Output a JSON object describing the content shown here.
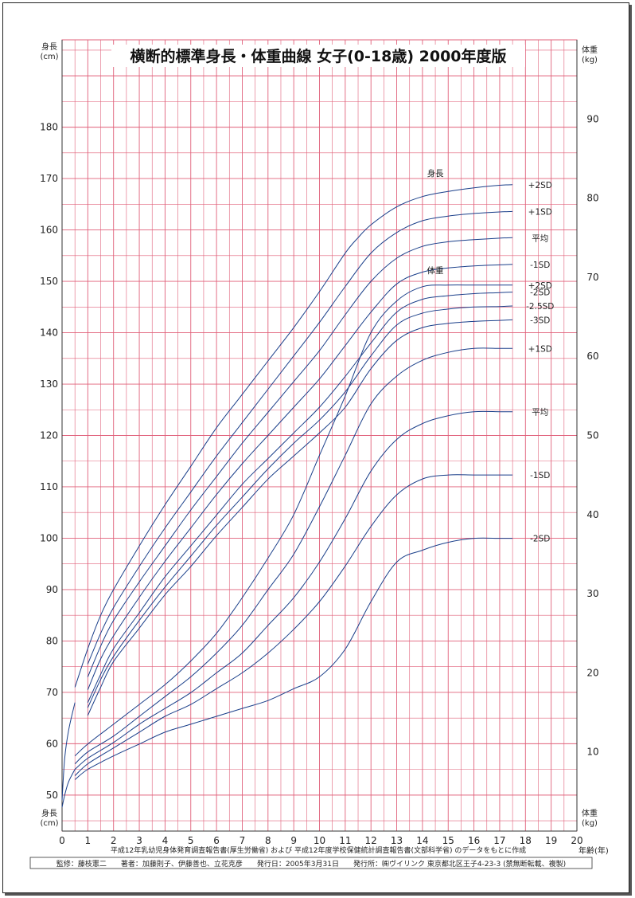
{
  "chart_data": {
    "type": "line",
    "title": "横断的標準身長・体重曲線 女子(0-18歳) 2000年度版",
    "xlabel": "年齢(年)",
    "x_ticks": [
      0,
      1,
      2,
      3,
      4,
      5,
      6,
      7,
      8,
      9,
      10,
      11,
      12,
      13,
      14,
      15,
      16,
      17,
      18,
      19,
      20
    ],
    "xlim": [
      0,
      20
    ],
    "y_left": {
      "label_top": "身長\n(cm)",
      "label_bottom": "身長\n(cm)",
      "ylim": [
        43,
        197
      ],
      "ticks": [
        50,
        60,
        70,
        80,
        90,
        100,
        110,
        120,
        130,
        140,
        150,
        160,
        170,
        180
      ]
    },
    "y_right": {
      "label_top": "体重\n(kg)",
      "label_bottom": "体重\n(kg)",
      "ylim": [
        0,
        100
      ],
      "ticks": [
        10,
        20,
        30,
        40,
        50,
        60,
        70,
        80,
        90
      ]
    },
    "grid": true,
    "height_group_label": "身長",
    "weight_group_label": "体重",
    "height_series": [
      {
        "name": "+2SD",
        "x": [
          0.5,
          1,
          1.5,
          2,
          3,
          4,
          5,
          6,
          7,
          8,
          9,
          10,
          11,
          11.5,
          12,
          13,
          14,
          15,
          16,
          17,
          17.5
        ],
        "values": [
          71,
          78.5,
          85,
          90,
          98.5,
          106.5,
          114,
          121.5,
          128,
          134.5,
          141,
          148,
          155.5,
          158.5,
          161,
          164.5,
          166.5,
          167.5,
          168.2,
          168.7,
          168.8
        ]
      },
      {
        "name": "+1SD",
        "x": [
          1,
          1.5,
          2,
          3,
          4,
          5,
          6,
          7,
          8,
          9,
          10,
          11,
          12,
          13,
          14,
          15,
          16,
          17,
          17.5
        ],
        "values": [
          75.5,
          81.5,
          86.5,
          94.5,
          102,
          109,
          116,
          122.5,
          129,
          135.5,
          142,
          149,
          155.5,
          159.5,
          161.8,
          162.7,
          163.2,
          163.5,
          163.6
        ]
      },
      {
        "name": "平均",
        "x": [
          1,
          1.5,
          2,
          3,
          4,
          5,
          6,
          7,
          8,
          9,
          10,
          11,
          12,
          13,
          14,
          15,
          16,
          17,
          17.5
        ],
        "values": [
          73,
          79,
          84,
          91.5,
          98.5,
          105.5,
          112,
          118.5,
          124.5,
          130.5,
          136.5,
          143.5,
          150,
          154.5,
          156.8,
          157.7,
          158.1,
          158.4,
          158.5
        ]
      },
      {
        "name": "-1SD",
        "x": [
          1,
          1.5,
          2,
          3,
          4,
          5,
          6,
          7,
          8,
          9,
          10,
          11,
          12,
          13,
          14,
          15,
          16,
          17,
          17.5
        ],
        "values": [
          70.5,
          76.5,
          81,
          88.5,
          95.5,
          102,
          108.5,
          114.5,
          120,
          125.5,
          131,
          137.5,
          144,
          149.5,
          151.8,
          152.6,
          153,
          153.2,
          153.3
        ]
      },
      {
        "name": "-2SD",
        "x": [
          1,
          1.5,
          2,
          3,
          4,
          5,
          6,
          7,
          8,
          9,
          10,
          11,
          12,
          13,
          14,
          15,
          16,
          17,
          17.5
        ],
        "values": [
          68,
          73.5,
          78.5,
          85.5,
          92.5,
          98.5,
          104.5,
          110.5,
          115.5,
          120.5,
          125.5,
          131.5,
          138,
          144,
          146.5,
          147.2,
          147.6,
          147.8,
          147.9
        ]
      },
      {
        "name": "-2.5SD",
        "x": [
          1,
          1.5,
          2,
          3,
          4,
          5,
          6,
          7,
          8,
          9,
          10,
          11,
          12,
          13,
          14,
          15,
          16,
          17,
          17.5
        ],
        "values": [
          67,
          72.5,
          77,
          84,
          90.5,
          96.5,
          102.5,
          108,
          113.5,
          118.5,
          123,
          128.5,
          135.5,
          141.5,
          143.8,
          144.6,
          145,
          145.1,
          145.2
        ]
      },
      {
        "name": "-3SD",
        "x": [
          1,
          1.5,
          2,
          3,
          4,
          5,
          6,
          7,
          8,
          9,
          10,
          11,
          12,
          13,
          14,
          15,
          16,
          17,
          17.5
        ],
        "values": [
          65.5,
          71,
          76,
          82.5,
          89,
          94.5,
          100.5,
          106,
          111.5,
          116,
          120.5,
          125.5,
          133,
          138.5,
          141,
          141.8,
          142.2,
          142.4,
          142.5
        ]
      }
    ],
    "height_newborn_start": {
      "x": [
        0,
        0.1,
        0.25,
        0.5
      ],
      "values": [
        49,
        57,
        62.5,
        68
      ]
    },
    "weight_series": [
      {
        "name": "+2SD",
        "x": [
          0.5,
          1,
          2,
          3,
          4,
          5,
          6,
          7,
          8,
          9,
          10,
          11,
          12,
          13,
          14,
          15,
          16,
          17,
          17.5
        ],
        "values": [
          9.5,
          11,
          13.5,
          16,
          18.5,
          21.5,
          25,
          29.5,
          34.5,
          40,
          47.5,
          55,
          63,
          67,
          68.8,
          69,
          69,
          69,
          69
        ]
      },
      {
        "name": "+1SD",
        "x": [
          0.5,
          1,
          2,
          3,
          4,
          5,
          6,
          7,
          8,
          9,
          10,
          11,
          12,
          13,
          14,
          15,
          16,
          17,
          17.5
        ],
        "values": [
          8.5,
          10,
          12,
          14.5,
          17,
          19.5,
          22.5,
          26,
          30.5,
          35,
          41,
          47.5,
          54,
          57.5,
          59.5,
          60.5,
          61,
          61,
          61
        ]
      },
      {
        "name": "平均",
        "x": [
          0.5,
          1,
          2,
          3,
          4,
          5,
          6,
          7,
          8,
          9,
          10,
          11,
          12,
          13,
          14,
          15,
          16,
          17,
          17.5
        ],
        "values": [
          7.8,
          9.2,
          11.2,
          13.5,
          15.5,
          17.5,
          20,
          22.5,
          26,
          29.5,
          34,
          39.5,
          45.5,
          49.5,
          51.5,
          52.5,
          53,
          53,
          53
        ]
      },
      {
        "name": "-1SD",
        "x": [
          0.5,
          1,
          2,
          3,
          4,
          5,
          6,
          7,
          8,
          9,
          10,
          11,
          12,
          13,
          14,
          15,
          16,
          17,
          17.5
        ],
        "values": [
          7,
          8.5,
          10.5,
          12.5,
          14.5,
          16,
          18,
          20,
          22.5,
          25.5,
          29,
          33.5,
          38.5,
          42.5,
          44.5,
          45,
          45,
          45,
          45
        ]
      },
      {
        "name": "-2SD",
        "x": [
          0.5,
          1,
          2,
          3,
          4,
          5,
          6,
          7,
          8,
          9,
          10,
          11,
          12,
          13,
          14,
          15,
          16,
          17,
          17.5
        ],
        "values": [
          6.5,
          7.8,
          9.5,
          11,
          12.5,
          13.5,
          14.5,
          15.5,
          16.5,
          18,
          19.5,
          23,
          29,
          34,
          35.5,
          36.5,
          37,
          37,
          37
        ]
      }
    ],
    "weight_newborn_start": {
      "x": [
        0,
        0.1,
        0.25,
        0.5
      ],
      "values": [
        3,
        4.5,
        6.2,
        7.8
      ]
    },
    "line_color": "#1a3f8a",
    "grid_color": "#e0607a"
  },
  "footer": {
    "source_note": "平成12年乳幼児身体発育調査報告書(厚生労働省) および 平成12年度学校保健統計調査報告書(文部科学省) のデータをもとに作成",
    "credits": "監修：藤枝憲二　　著者：加藤則子、伊藤善也、立花克彦　　発行日：2005年3月31日　　発行所：㈱ヴイリンク 東京都北区王子4-23-3 (禁無断転載、複製)"
  }
}
